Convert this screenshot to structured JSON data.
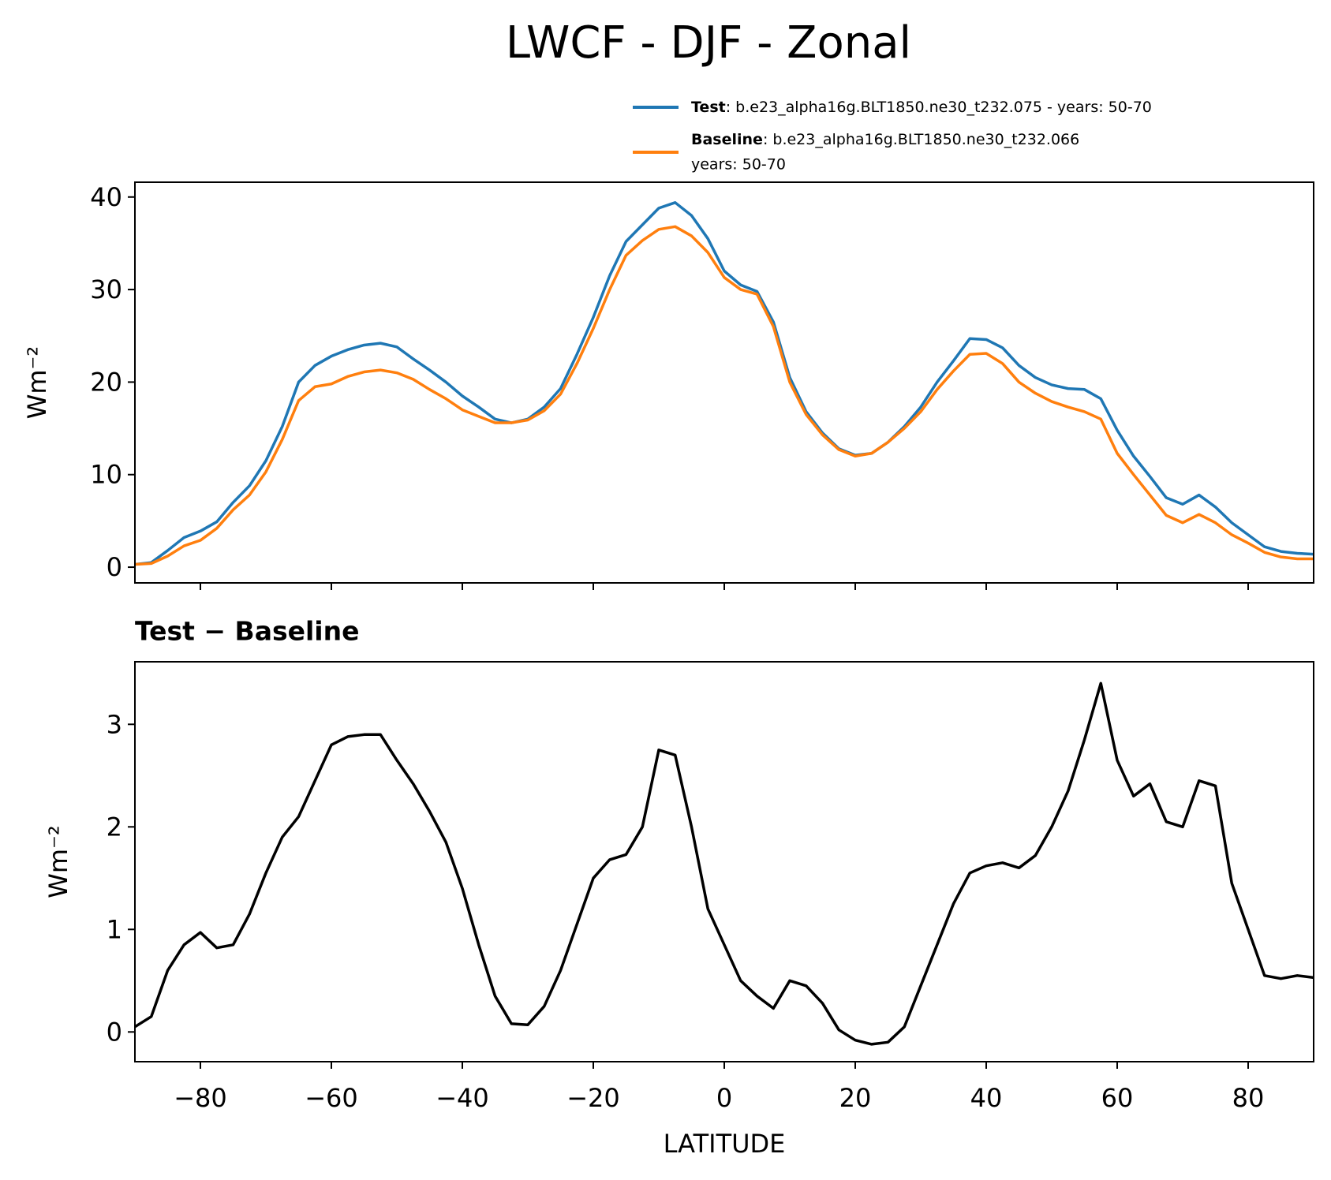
{
  "title": "LWCF - DJF - Zonal",
  "chart_data": [
    {
      "type": "line",
      "ylabel": "Wm⁻²",
      "x": [
        -90,
        -87.5,
        -85,
        -82.5,
        -80,
        -77.5,
        -75,
        -72.5,
        -70,
        -67.5,
        -65,
        -62.5,
        -60,
        -57.5,
        -55,
        -52.5,
        -50,
        -47.5,
        -45,
        -42.5,
        -40,
        -37.5,
        -35,
        -32.5,
        -30,
        -27.5,
        -25,
        -22.5,
        -20,
        -17.5,
        -15,
        -12.5,
        -10,
        -7.5,
        -5,
        -2.5,
        0,
        2.5,
        5,
        7.5,
        10,
        12.5,
        15,
        17.5,
        20,
        22.5,
        25,
        27.5,
        30,
        32.5,
        35,
        37.5,
        40,
        42.5,
        45,
        47.5,
        50,
        52.5,
        55,
        57.5,
        60,
        62.5,
        65,
        67.5,
        70,
        72.5,
        75,
        77.5,
        80,
        82.5,
        85,
        87.5,
        90
      ],
      "series": [
        {
          "name": "Test",
          "label": ": b.e23_alpha16g.BLT1850.ne30_t232.075 - years: 50-70",
          "color": "#1f77b4",
          "values": [
            0.3,
            0.5,
            1.8,
            3.2,
            3.9,
            4.9,
            7.0,
            8.8,
            11.5,
            15.2,
            20.0,
            21.8,
            22.8,
            23.5,
            24.0,
            24.2,
            23.8,
            22.5,
            21.3,
            20.0,
            18.5,
            17.3,
            16.0,
            15.6,
            16.0,
            17.3,
            19.3,
            23.0,
            27.0,
            31.5,
            35.2,
            37.0,
            38.8,
            39.4,
            38.0,
            35.5,
            32.0,
            30.5,
            29.8,
            26.5,
            20.5,
            16.8,
            14.5,
            12.8,
            12.1,
            12.3,
            13.5,
            15.2,
            17.3,
            20.0,
            22.3,
            24.7,
            24.6,
            23.7,
            21.8,
            20.5,
            19.7,
            19.3,
            19.2,
            18.2,
            14.8,
            12.0,
            9.8,
            7.5,
            6.8,
            7.8,
            6.5,
            4.8,
            3.5,
            2.2,
            1.7,
            1.5,
            1.4
          ]
        },
        {
          "name": "Baseline",
          "label": ": b.e23_alpha16g.BLT1850.ne30_t232.066",
          "label2": "years: 50-70",
          "color": "#ff7f0e",
          "values": [
            0.3,
            0.4,
            1.2,
            2.3,
            2.9,
            4.2,
            6.2,
            7.8,
            10.3,
            13.8,
            18.0,
            19.5,
            19.8,
            20.6,
            21.1,
            21.3,
            21.0,
            20.3,
            19.2,
            18.2,
            17.0,
            16.3,
            15.6,
            15.6,
            15.9,
            16.9,
            18.7,
            22.0,
            25.8,
            30.0,
            33.7,
            35.3,
            36.5,
            36.8,
            35.8,
            34.0,
            31.3,
            30.0,
            29.5,
            26.0,
            20.0,
            16.5,
            14.3,
            12.7,
            12.0,
            12.3,
            13.5,
            15.0,
            16.8,
            19.2,
            21.2,
            23.0,
            23.1,
            22.0,
            20.0,
            18.8,
            17.9,
            17.3,
            16.8,
            16.0,
            12.3,
            10.0,
            7.8,
            5.6,
            4.8,
            5.7,
            4.8,
            3.5,
            2.6,
            1.6,
            1.1,
            0.9,
            0.9
          ]
        }
      ],
      "xlim": [
        -90,
        90
      ],
      "xticks": [
        -80,
        -60,
        -40,
        -20,
        0,
        20,
        40,
        60,
        80
      ],
      "ylim": [
        -1.7,
        41.6
      ],
      "yticks": [
        0,
        10,
        20,
        30,
        40
      ]
    },
    {
      "type": "line",
      "title": "Test − Baseline",
      "xlabel": "LATITUDE",
      "ylabel": "Wm⁻²",
      "x": [
        -90,
        -87.5,
        -85,
        -82.5,
        -80,
        -77.5,
        -75,
        -72.5,
        -70,
        -67.5,
        -65,
        -62.5,
        -60,
        -57.5,
        -55,
        -52.5,
        -50,
        -47.5,
        -45,
        -42.5,
        -40,
        -37.5,
        -35,
        -32.5,
        -30,
        -27.5,
        -25,
        -22.5,
        -20,
        -17.5,
        -15,
        -12.5,
        -10,
        -7.5,
        -5,
        -2.5,
        0,
        2.5,
        5,
        7.5,
        10,
        12.5,
        15,
        17.5,
        20,
        22.5,
        25,
        27.5,
        30,
        32.5,
        35,
        37.5,
        40,
        42.5,
        45,
        47.5,
        50,
        52.5,
        55,
        57.5,
        60,
        62.5,
        65,
        67.5,
        70,
        72.5,
        75,
        77.5,
        80,
        82.5,
        85,
        87.5,
        90
      ],
      "series": [
        {
          "color": "#000000",
          "values": [
            0.05,
            0.15,
            0.6,
            0.85,
            0.97,
            0.82,
            0.85,
            1.15,
            1.55,
            1.9,
            2.1,
            2.45,
            2.8,
            2.88,
            2.9,
            2.9,
            2.65,
            2.42,
            2.15,
            1.85,
            1.4,
            0.85,
            0.35,
            0.08,
            0.07,
            0.25,
            0.6,
            1.05,
            1.5,
            1.68,
            1.73,
            2.0,
            2.75,
            2.7,
            2.0,
            1.2,
            0.85,
            0.5,
            0.35,
            0.23,
            0.5,
            0.45,
            0.28,
            0.02,
            -0.08,
            -0.12,
            -0.1,
            0.05,
            0.45,
            0.85,
            1.25,
            1.55,
            1.62,
            1.65,
            1.6,
            1.72,
            2.0,
            2.35,
            2.85,
            3.4,
            2.65,
            2.3,
            2.42,
            2.05,
            2.0,
            2.45,
            2.4,
            1.45,
            1.0,
            0.55,
            0.52,
            0.55,
            0.53
          ]
        }
      ],
      "xlim": [
        -90,
        90
      ],
      "xticks": [
        {
          "value": -80,
          "label": "−80"
        },
        {
          "value": -60,
          "label": "−60"
        },
        {
          "value": -40,
          "label": "−40"
        },
        {
          "value": -20,
          "label": "−20"
        },
        0,
        20,
        40,
        60,
        80
      ],
      "ylim": [
        -0.29,
        3.61
      ],
      "yticks": [
        0,
        1,
        2,
        3
      ]
    }
  ]
}
